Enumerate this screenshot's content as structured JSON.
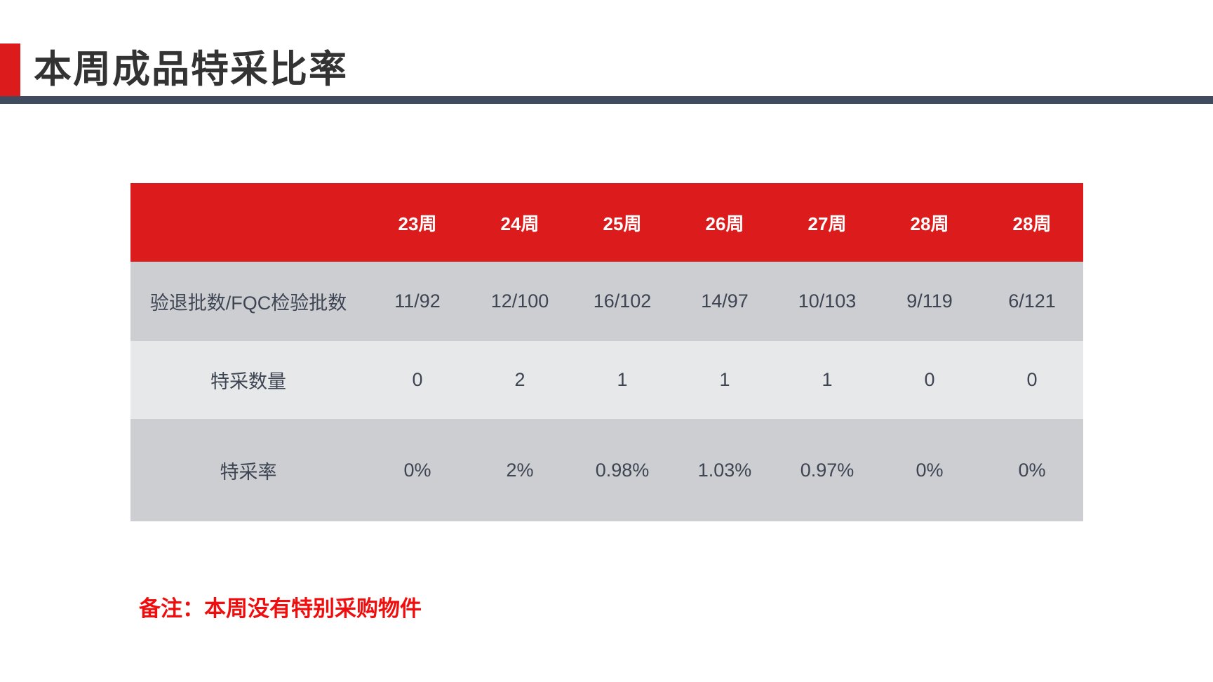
{
  "header": {
    "title": "本周成品特采比率"
  },
  "colors": {
    "accent": "#dc1c1c",
    "rule": "#404b5e",
    "note": "#f00d0d"
  },
  "table": {
    "columns": [
      "",
      "23周",
      "24周",
      "25周",
      "26周",
      "27周",
      "28周",
      "28周"
    ],
    "rows": [
      {
        "label": "验退批数/FQC检验批数",
        "values": [
          "11/92",
          "12/100",
          "16/102",
          "14/97",
          "10/103",
          "9/119",
          "6/121"
        ]
      },
      {
        "label": "特采数量",
        "values": [
          "0",
          "2",
          "1",
          "1",
          "1",
          "0",
          "0"
        ]
      },
      {
        "label": "特采率",
        "values": [
          "0%",
          "2%",
          "0.98%",
          "1.03%",
          "0.97%",
          "0%",
          "0%"
        ]
      }
    ]
  },
  "note": "备注：本周没有特别采购物件"
}
